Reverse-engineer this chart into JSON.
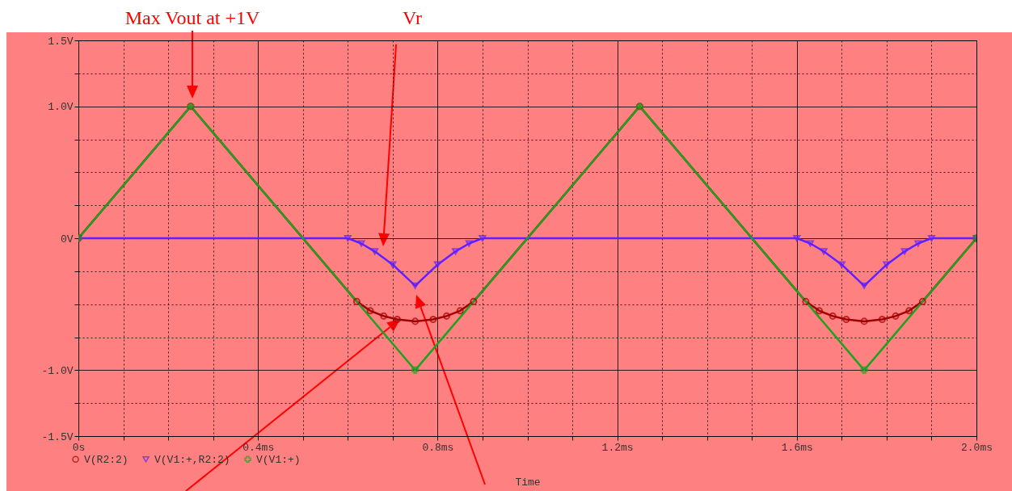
{
  "chart_data": {
    "type": "line",
    "xlabel": "Time",
    "x": [
      0,
      0.25,
      0.75,
      1.25,
      1.75,
      2.0
    ],
    "series": [
      {
        "name": "V(R2:2)",
        "color": "#a00000",
        "marker": "circle",
        "x": [
          0,
          0.25,
          0.62,
          0.65,
          0.68,
          0.71,
          0.75,
          0.79,
          0.82,
          0.85,
          0.88,
          1.25,
          1.62,
          1.65,
          1.68,
          1.71,
          1.75,
          1.79,
          1.82,
          1.85,
          1.88,
          2.0
        ],
        "values": [
          0,
          1,
          -0.48,
          -0.55,
          -0.59,
          -0.615,
          -0.63,
          -0.615,
          -0.59,
          -0.55,
          -0.48,
          1,
          -0.48,
          -0.55,
          -0.59,
          -0.615,
          -0.63,
          -0.615,
          -0.59,
          -0.55,
          -0.48,
          0
        ]
      },
      {
        "name": "V(V1:+,R2:2)",
        "color": "#6020ff",
        "marker": "triangle",
        "x": [
          0,
          0.6,
          0.63,
          0.66,
          0.7,
          0.75,
          0.8,
          0.84,
          0.87,
          0.9,
          1.6,
          1.63,
          1.66,
          1.7,
          1.75,
          1.8,
          1.84,
          1.87,
          1.9,
          2.0
        ],
        "values": [
          0,
          0,
          -0.04,
          -0.1,
          -0.2,
          -0.36,
          -0.2,
          -0.1,
          -0.04,
          0,
          0,
          -0.04,
          -0.1,
          -0.2,
          -0.36,
          -0.2,
          -0.1,
          -0.04,
          0,
          0
        ]
      },
      {
        "name": "V(V1:+)",
        "color": "#20a020",
        "marker": "cross",
        "values": [
          0,
          1,
          -1,
          1,
          -1,
          0
        ]
      }
    ],
    "xlim": [
      0,
      2.0
    ],
    "xticks": [
      {
        "value": 0,
        "label": "0s"
      },
      {
        "value": 0.1,
        "label": null
      },
      {
        "value": 0.2,
        "label": null
      },
      {
        "value": 0.3,
        "label": null
      },
      {
        "value": 0.4,
        "label": "0.4ms"
      },
      {
        "value": 0.5,
        "label": null
      },
      {
        "value": 0.6,
        "label": null
      },
      {
        "value": 0.7,
        "label": null
      },
      {
        "value": 0.8,
        "label": "0.8ms"
      },
      {
        "value": 0.9,
        "label": null
      },
      {
        "value": 1.0,
        "label": null
      },
      {
        "value": 1.1,
        "label": null
      },
      {
        "value": 1.2,
        "label": "1.2ms"
      },
      {
        "value": 1.3,
        "label": null
      },
      {
        "value": 1.4,
        "label": null
      },
      {
        "value": 1.5,
        "label": null
      },
      {
        "value": 1.6,
        "label": "1.6ms"
      },
      {
        "value": 1.7,
        "label": null
      },
      {
        "value": 1.8,
        "label": null
      },
      {
        "value": 1.9,
        "label": null
      },
      {
        "value": 2.0,
        "label": "2.0ms"
      }
    ],
    "ylim": [
      -1.5,
      1.5
    ],
    "yticks": [
      {
        "value": -1.5,
        "label": "-1.5V"
      },
      {
        "value": -1.25,
        "label": null
      },
      {
        "value": -1.0,
        "label": "-1.0V"
      },
      {
        "value": -0.75,
        "label": null
      },
      {
        "value": -0.5,
        "label": null
      },
      {
        "value": -0.25,
        "label": null
      },
      {
        "value": 0,
        "label": "0V"
      },
      {
        "value": 0.25,
        "label": null
      },
      {
        "value": 0.5,
        "label": null
      },
      {
        "value": 0.75,
        "label": null
      },
      {
        "value": 1.0,
        "label": "1.0V"
      },
      {
        "value": 1.25,
        "label": null
      },
      {
        "value": 1.5,
        "label": "1.5V"
      }
    ],
    "grid": true,
    "legend": "bottom left",
    "annotations": [
      "Max Vout at +1V",
      "Vr"
    ]
  }
}
